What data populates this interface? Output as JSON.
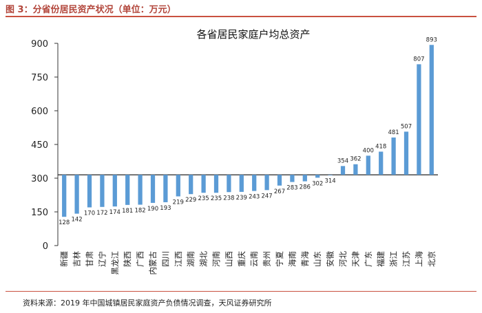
{
  "figure_title": "图 3：分省份居民资产状况（单位：万元）",
  "source": "资料来源：2019 年中国城镇居民家庭资产负债情况调查，天风证券研究所",
  "chart_data": {
    "type": "bar",
    "title": "各省居民家庭户均总资产",
    "xlabel": "",
    "ylabel": "",
    "ylim": [
      0,
      900
    ],
    "baseline": 315,
    "yticks": [
      0,
      150,
      300,
      450,
      600,
      750,
      900
    ],
    "grid": false,
    "legend": false,
    "bar_color": "#5b9bd5",
    "categories": [
      "新疆",
      "吉林",
      "甘肃",
      "辽宁",
      "黑龙江",
      "陕西",
      "广西",
      "内蒙古",
      "四川",
      "江西",
      "湖南",
      "湖北",
      "河南",
      "山西",
      "重庆",
      "云南",
      "贵州",
      "宁夏",
      "海南",
      "青海",
      "山东",
      "安徽",
      "河北",
      "天津",
      "广东",
      "福建",
      "浙江",
      "江苏",
      "上海",
      "北京"
    ],
    "values": [
      128,
      142,
      170,
      172,
      174,
      181,
      182,
      190,
      193,
      219,
      229,
      235,
      235,
      238,
      239,
      243,
      247,
      267,
      283,
      286,
      302,
      314,
      354,
      362,
      400,
      418,
      481,
      507,
      807,
      893
    ]
  }
}
